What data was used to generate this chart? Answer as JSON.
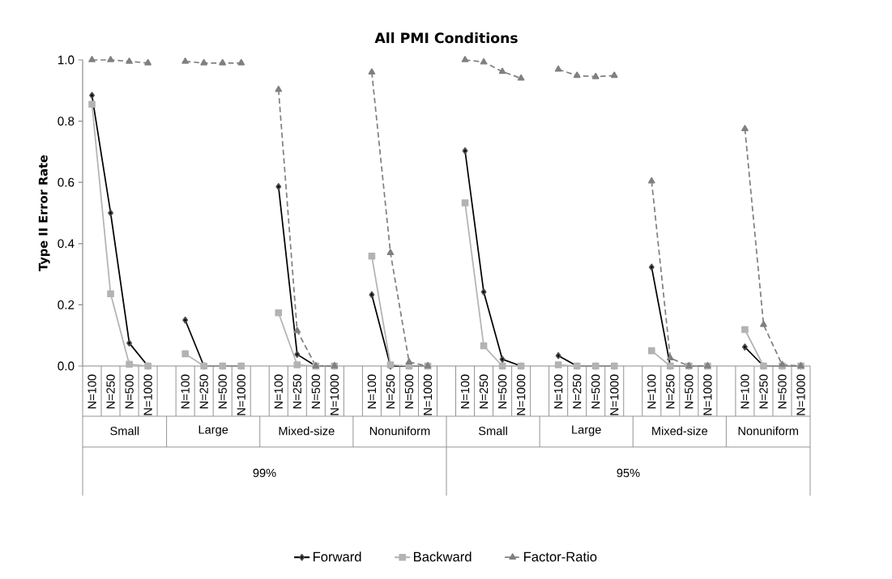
{
  "chart_data": {
    "type": "line",
    "title": "All PMI Conditions",
    "ylabel": "Type II Error Rate",
    "categories": [
      "N=100",
      "N=250",
      "N=500",
      "N=1000",
      null,
      "N=100",
      "N=250",
      "N=500",
      "N=1000",
      null,
      "N=100",
      "N=250",
      "N=500",
      "N=1000",
      null,
      "N=100",
      "N=250",
      "N=500",
      "N=1000",
      null,
      "N=100",
      "N=250",
      "N=500",
      "N=1000",
      null,
      "N=100",
      "N=250",
      "N=500",
      "N=1000",
      null,
      "N=100",
      "N=250",
      "N=500",
      "N=1000",
      null,
      "N=100",
      "N=250",
      "N=500",
      "N=1000"
    ],
    "series": [
      {
        "name": "Forward",
        "color": "#000000",
        "marker": "diamond",
        "line_style": "solid",
        "values": [
          0.884,
          0.5,
          0.075,
          0.0,
          null,
          0.15,
          0.0,
          0.0,
          0.0,
          null,
          0.586,
          0.038,
          0.0,
          0.0,
          null,
          0.233,
          0.0,
          0.0,
          0.0,
          null,
          0.703,
          0.242,
          0.022,
          0.0,
          null,
          0.034,
          0.0,
          0.0,
          0.0,
          null,
          0.323,
          0.0,
          0.0,
          0.0,
          null,
          0.062,
          0.0,
          0.0,
          0.0
        ]
      },
      {
        "name": "Backward",
        "color": "#b3b3b3",
        "marker": "square",
        "line_style": "solid",
        "values": [
          0.855,
          0.236,
          0.006,
          0.0,
          null,
          0.04,
          0.0,
          0.0,
          0.0,
          null,
          0.174,
          0.004,
          0.0,
          0.0,
          null,
          0.359,
          0.004,
          0.0,
          0.0,
          null,
          0.533,
          0.066,
          0.0,
          0.0,
          null,
          0.004,
          0.0,
          0.0,
          0.0,
          null,
          0.05,
          0.0,
          0.0,
          0.0,
          null,
          0.119,
          0.0,
          0.0,
          0.0
        ]
      },
      {
        "name": "Factor-Ratio",
        "color": "#808080",
        "marker": "triangle",
        "line_style": "dashed",
        "values": [
          1.0,
          1.0,
          0.995,
          0.99,
          null,
          0.995,
          0.99,
          0.99,
          0.99,
          null,
          0.903,
          0.115,
          0.0,
          0.0,
          null,
          0.96,
          0.37,
          0.013,
          0.0,
          null,
          1.0,
          0.993,
          0.962,
          0.94,
          null,
          0.969,
          0.949,
          0.945,
          0.949,
          null,
          0.604,
          0.026,
          0.0,
          0.0,
          null,
          0.775,
          0.135,
          0.004,
          0.0
        ]
      }
    ],
    "ylim": [
      0,
      1
    ],
    "yticks": [
      {
        "value": 0,
        "label": "0.0"
      },
      {
        "value": 0.2,
        "label": "0.2"
      },
      {
        "value": 0.4,
        "label": "0.4"
      },
      {
        "value": 0.6,
        "label": "0.6"
      },
      {
        "value": 0.8,
        "label": "0.8"
      },
      {
        "value": 1,
        "label": "1.0"
      }
    ],
    "grid": false,
    "legend": "bottom",
    "annotations": [
      "Small",
      "Large",
      "Mixed-size",
      "Nonuniform",
      "Small",
      "Large",
      "Mixed-size",
      "Nonuniform",
      "99%",
      "95%"
    ]
  }
}
